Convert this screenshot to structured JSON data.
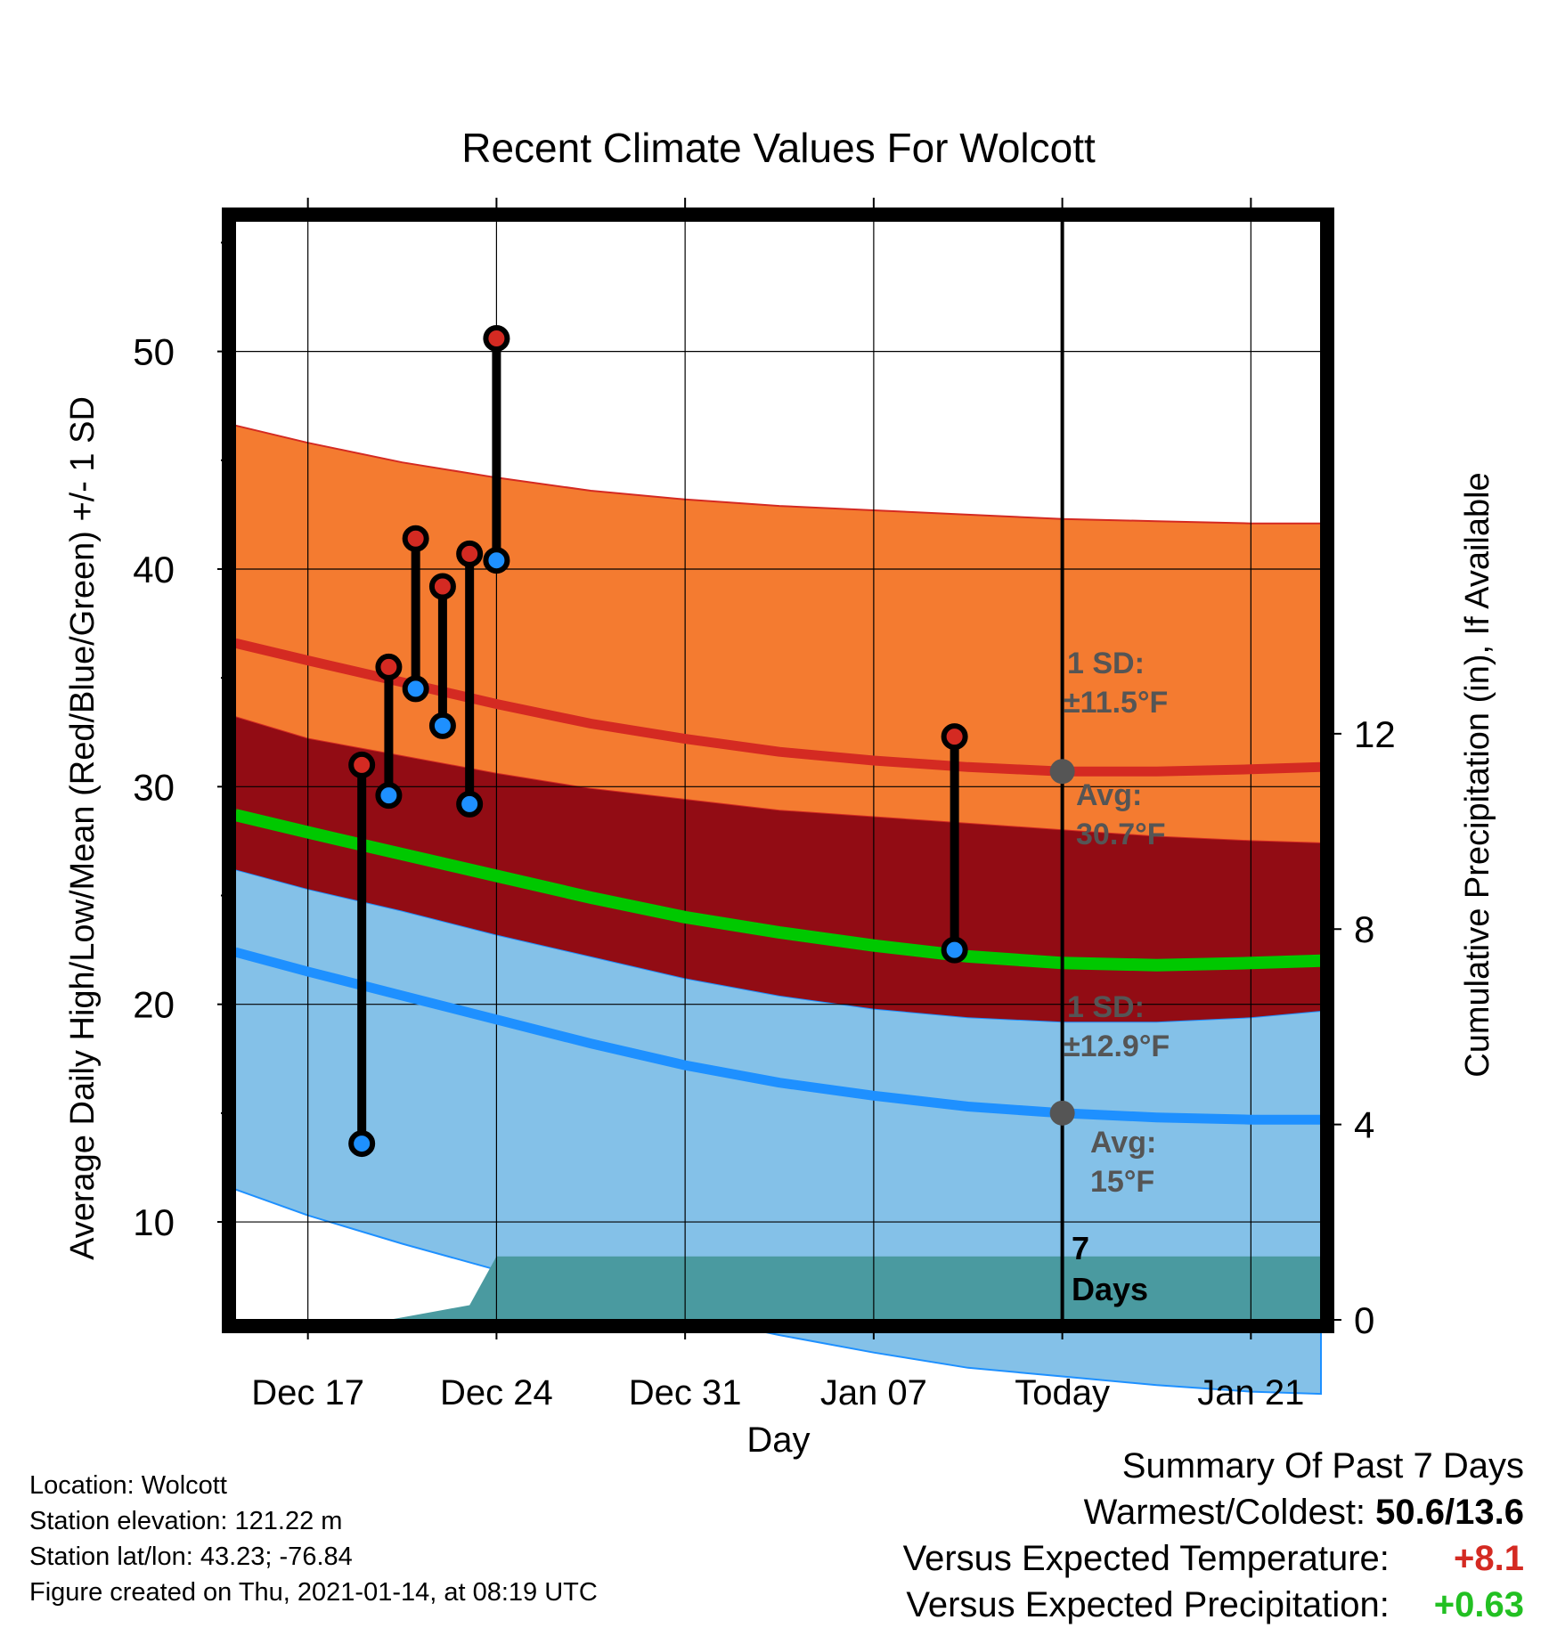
{
  "title": "Recent Climate Values For Wolcott",
  "y_axis_left_label": "Average Daily High/Low/Mean (Red/Blue/Green) +/- 1 SD",
  "y_axis_right_label": "Cumulative Precipitation (in), If Available",
  "x_axis_label": "Day",
  "annotations": {
    "high_sd_line1": "1 SD:",
    "high_sd_line2": "±11.5°F",
    "high_avg_line1": "Avg:",
    "high_avg_line2": "30.7°F",
    "low_sd_line1": "1 SD:",
    "low_sd_line2": "±12.9°F",
    "low_avg_line1": "Avg:",
    "low_avg_line2": "15°F",
    "days_line1": "7",
    "days_line2": "Days"
  },
  "info": {
    "location": "Location: Wolcott",
    "elevation": "Station elevation: 121.22 m",
    "latlon": "Station lat/lon: 43.23; -76.84",
    "created": "Figure created on Thu, 2021-01-14, at 08:19 UTC"
  },
  "summary": {
    "heading": "Summary Of Past 7 Days",
    "warm_cold_label": "Warmest/Coldest:",
    "warm_cold_value": "50.6/13.6",
    "temp_label": "Versus Expected Temperature:",
    "temp_value": "+8.1",
    "precip_label": "Versus Expected Precipitation:",
    "precip_value": "+0.63"
  },
  "colors": {
    "high_band": "#f47b30",
    "overlap_band": "#920c14",
    "low_band": "#84c1e8",
    "high_line": "#d42a22",
    "mean_line": "#00c800",
    "low_line": "#1e90ff",
    "precip": "#4a9aa0",
    "annot": "#555555",
    "temp_positive": "#d42a22",
    "precip_positive": "#22c022"
  },
  "chart_data": {
    "type": "line",
    "x_axis": {
      "ticks": [
        "Dec 17",
        "Dec 24",
        "Dec 31",
        "Jan 07",
        "Today",
        "Jan 21"
      ],
      "tick_day_offsets": [
        0,
        7,
        14,
        21,
        28,
        35
      ],
      "range_day_offsets": [
        -2.7,
        37.6
      ],
      "today_day_offset": 28
    },
    "y_axis_left": {
      "range": [
        5.5,
        56
      ],
      "ticks": [
        10,
        20,
        30,
        40,
        50
      ]
    },
    "y_axis_right": {
      "range": [
        0,
        22.5
      ],
      "ticks": [
        0,
        4,
        8,
        12
      ]
    },
    "grid": true,
    "normals": {
      "day_offsets": [
        -2.7,
        0,
        3.5,
        7,
        10.5,
        14,
        17.5,
        21,
        24.5,
        28,
        31.5,
        35,
        37.6
      ],
      "mean_high": [
        36.6,
        35.8,
        34.8,
        33.8,
        32.9,
        32.2,
        31.6,
        31.2,
        30.9,
        30.7,
        30.7,
        30.8,
        30.9
      ],
      "high_plus_sd": [
        46.6,
        45.8,
        44.9,
        44.2,
        43.6,
        43.2,
        42.9,
        42.7,
        42.5,
        42.3,
        42.2,
        42.1,
        42.1
      ],
      "high_minus_sd": [
        33.2,
        32.2,
        31.4,
        30.6,
        29.9,
        29.4,
        28.9,
        28.6,
        28.3,
        28.0,
        27.7,
        27.5,
        27.4
      ],
      "mean_temp": [
        28.7,
        27.9,
        26.9,
        25.9,
        24.9,
        24.0,
        23.3,
        22.7,
        22.2,
        21.9,
        21.8,
        21.9,
        22.0
      ],
      "mean_low": [
        22.4,
        21.5,
        20.4,
        19.3,
        18.2,
        17.2,
        16.4,
        15.8,
        15.3,
        15.0,
        14.8,
        14.7,
        14.7
      ],
      "low_plus_sd": [
        26.2,
        25.3,
        24.3,
        23.2,
        22.2,
        21.2,
        20.4,
        19.8,
        19.4,
        19.2,
        19.2,
        19.4,
        19.7
      ],
      "low_minus_sd": [
        11.5,
        10.3,
        9.0,
        7.8,
        6.7,
        5.7,
        4.8,
        4.0,
        3.3,
        2.9,
        2.5,
        2.2,
        2.1
      ]
    },
    "observed": [
      {
        "day_offset": 2,
        "high": 31.0,
        "low": 13.6
      },
      {
        "day_offset": 3,
        "high": 35.5,
        "low": 29.6
      },
      {
        "day_offset": 4,
        "high": 41.4,
        "low": 34.5
      },
      {
        "day_offset": 5,
        "high": 39.2,
        "low": 32.8
      },
      {
        "day_offset": 6,
        "high": 40.7,
        "low": 29.2
      },
      {
        "day_offset": 7,
        "high": 50.6,
        "low": 40.4
      },
      {
        "day_offset": 24,
        "high": 32.3,
        "low": 22.5
      }
    ],
    "precip_cumulative": {
      "day_offsets": [
        -2.7,
        3,
        4,
        5,
        6,
        7,
        37.6
      ],
      "values": [
        0,
        0,
        0.1,
        0.2,
        0.3,
        1.3,
        1.3
      ]
    },
    "reference_points": [
      {
        "day_offset": 28,
        "value": 30.7
      },
      {
        "day_offset": 28,
        "value": 15.0
      }
    ]
  }
}
